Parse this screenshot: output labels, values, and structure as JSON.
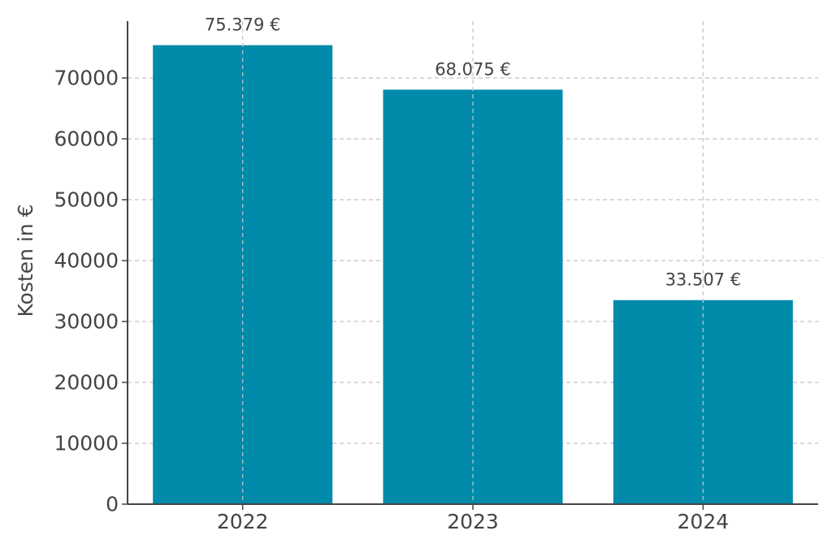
{
  "chart_data": {
    "type": "bar",
    "title": "",
    "xlabel": "",
    "ylabel": "Kosten in €",
    "categories": [
      "2022",
      "2023",
      "2024"
    ],
    "values": [
      75379,
      68075,
      33507
    ],
    "data_labels": [
      "75.379 €",
      "68.075 €",
      "33.507 €"
    ],
    "ylim": [
      0,
      80000
    ],
    "yticks": [
      0,
      10000,
      20000,
      30000,
      40000,
      50000,
      60000,
      70000
    ],
    "ytick_labels": [
      "0",
      "10000",
      "20000",
      "30000",
      "40000",
      "50000",
      "60000",
      "70000"
    ],
    "grid": true,
    "grid_style": "dashed",
    "bar_color": "#008baa",
    "grid_color": "#c8c0cc",
    "axis_color": "#444444",
    "text_color": "#444444"
  }
}
